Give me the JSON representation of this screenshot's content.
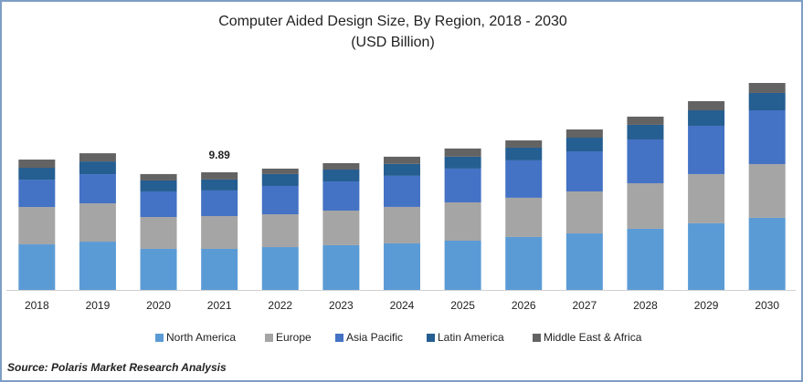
{
  "chart_data": {
    "type": "stacked-bar",
    "title": "Computer Aided Design Size, By Region, 2018 - 2030",
    "subtitle": "(USD Billion)",
    "categories": [
      "2018",
      "2019",
      "2020",
      "2021",
      "2022",
      "2023",
      "2024",
      "2025",
      "2026",
      "2027",
      "2028",
      "2029",
      "2030"
    ],
    "series": [
      {
        "name": "North America",
        "color": "#5b9bd5",
        "values": [
          3.83,
          4.06,
          3.45,
          3.45,
          3.6,
          3.76,
          3.91,
          4.14,
          4.45,
          4.75,
          5.14,
          5.6,
          6.06
        ]
      },
      {
        "name": "Europe",
        "color": "#a5a5a5",
        "values": [
          3.14,
          3.22,
          2.68,
          2.76,
          2.76,
          2.91,
          3.07,
          3.22,
          3.3,
          3.53,
          3.83,
          4.14,
          4.52
        ]
      },
      {
        "name": "Asia Pacific",
        "color": "#4472c4",
        "values": [
          2.3,
          2.45,
          2.15,
          2.15,
          2.38,
          2.45,
          2.61,
          2.84,
          3.14,
          3.37,
          3.68,
          4.06,
          4.52
        ]
      },
      {
        "name": "Latin America",
        "color": "#255e91",
        "values": [
          1.0,
          1.07,
          0.92,
          0.92,
          1.0,
          1.0,
          1.0,
          1.0,
          1.07,
          1.15,
          1.23,
          1.3,
          1.46
        ]
      },
      {
        "name": "Middle East & Africa",
        "color": "#636363",
        "values": [
          0.69,
          0.69,
          0.54,
          0.61,
          0.46,
          0.54,
          0.61,
          0.69,
          0.61,
          0.69,
          0.69,
          0.77,
          0.84
        ]
      }
    ],
    "annotations": [
      {
        "x": "2021",
        "value": 9.89
      }
    ],
    "source": "Source: Polaris Market Research Analysis"
  }
}
